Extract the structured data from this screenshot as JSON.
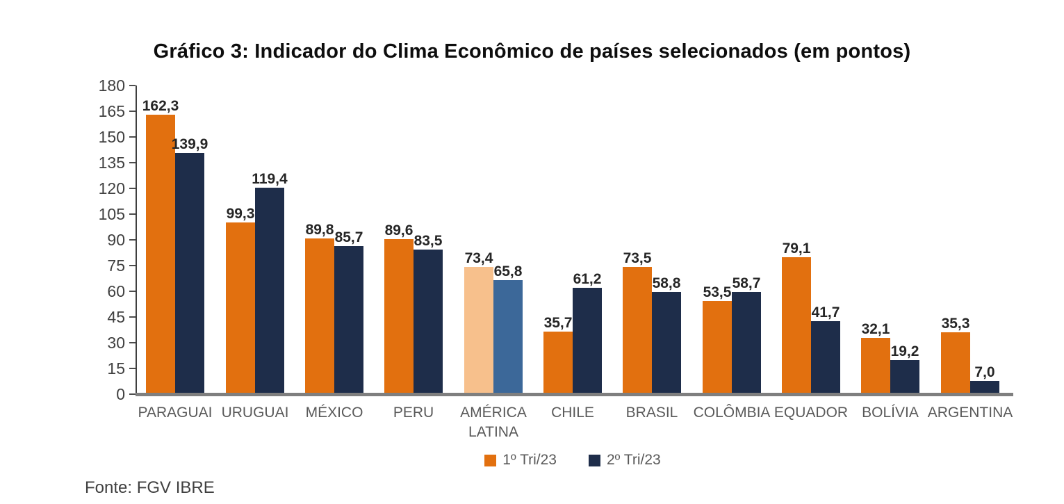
{
  "title": "Gráfico 3: Indicador do Clima Econômico de países selecionados (em pontos)",
  "source": "Fonte: FGV IBRE",
  "legend": [
    {
      "label": "1º Tri/23",
      "color": "#E2700F"
    },
    {
      "label": "2º Tri/23",
      "color": "#1E2D4A"
    }
  ],
  "colors": {
    "series1": "#E2700F",
    "series1_highlight": "#F7C08C",
    "series2": "#1E2D4A",
    "series2_highlight": "#3C6899",
    "axis": "#3f3f3f",
    "baseline": "#7f7f7f"
  },
  "chart_data": {
    "type": "bar",
    "title": "Gráfico 3: Indicador do Clima Econômico de países selecionados (em pontos)",
    "xlabel": "",
    "ylabel": "",
    "ylim": [
      0,
      180
    ],
    "y_ticks": [
      0,
      15,
      30,
      45,
      60,
      75,
      90,
      105,
      120,
      135,
      150,
      165,
      180
    ],
    "grid": false,
    "legend_position": "bottom",
    "categories": [
      "PARAGUAI",
      "URUGUAI",
      "MÉXICO",
      "PERU",
      "AMÉRICA LATINA",
      "CHILE",
      "BRASIL",
      "COLÔMBIA",
      "EQUADOR",
      "BOLÍVIA",
      "ARGENTINA"
    ],
    "highlight_category_index": 4,
    "series": [
      {
        "name": "1º Tri/23",
        "color": "#E2700F",
        "highlight_color": "#F7C08C",
        "values": [
          162.3,
          99.3,
          89.8,
          89.6,
          73.4,
          35.7,
          73.5,
          53.5,
          79.1,
          32.1,
          35.3
        ],
        "value_labels": [
          "162,3",
          "99,3",
          "89,8",
          "89,6",
          "73,4",
          "35,7",
          "73,5",
          "53,5",
          "79,1",
          "32,1",
          "35,3"
        ]
      },
      {
        "name": "2º Tri/23",
        "color": "#1E2D4A",
        "highlight_color": "#3C6899",
        "values": [
          139.9,
          119.4,
          85.7,
          83.5,
          65.8,
          61.2,
          58.8,
          58.7,
          41.7,
          19.2,
          7.0
        ],
        "value_labels": [
          "139,9",
          "119,4",
          "85,7",
          "83,5",
          "65,8",
          "61,2",
          "58,8",
          "58,7",
          "41,7",
          "19,2",
          "7,0"
        ]
      }
    ]
  }
}
